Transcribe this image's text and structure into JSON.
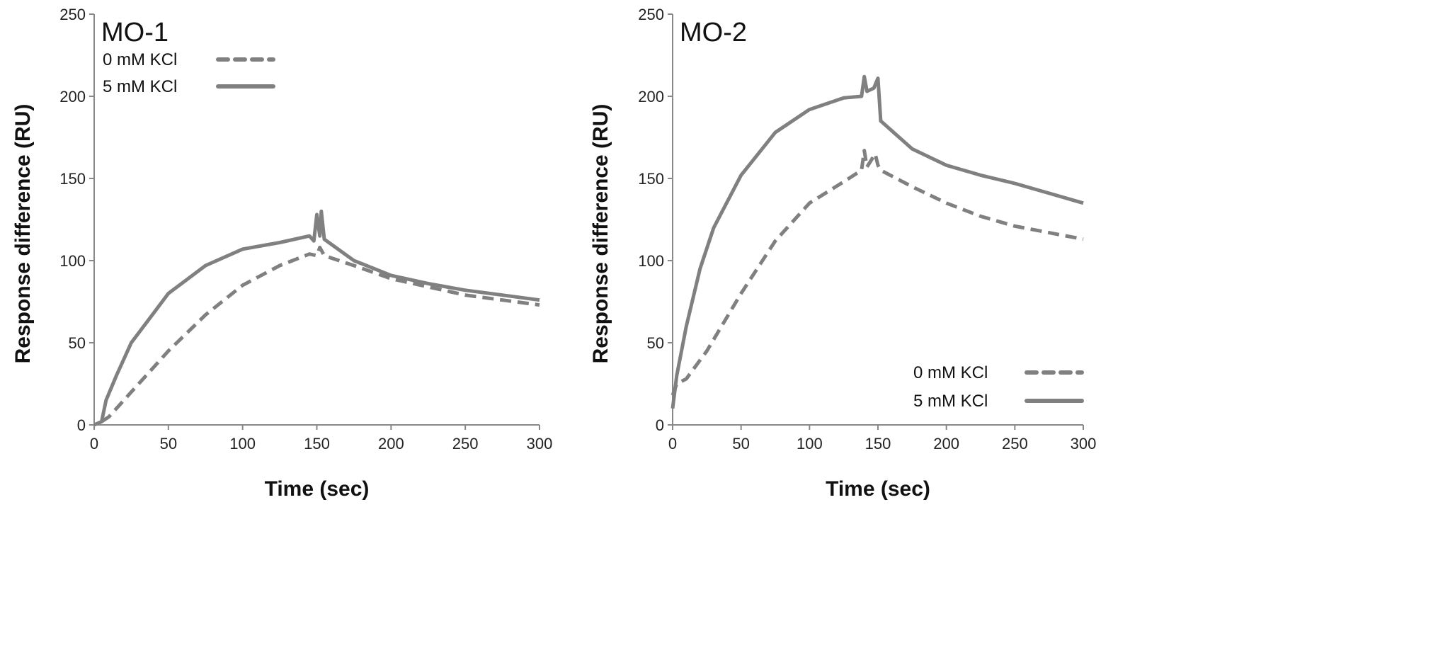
{
  "chart_data": [
    {
      "type": "line",
      "title": "MO-1",
      "xlabel": "Time (sec)",
      "ylabel": "Response difference  (RU)",
      "xlim": [
        0,
        300
      ],
      "ylim": [
        0,
        250
      ],
      "xticks": [
        0,
        50,
        100,
        150,
        200,
        250,
        300
      ],
      "yticks": [
        0,
        50,
        100,
        150,
        200,
        250
      ],
      "grid": false,
      "legend_position": "top-left",
      "series": [
        {
          "name": "0 mM KCl",
          "style": "dashed",
          "color": "#808080",
          "x": [
            5,
            10,
            25,
            50,
            75,
            100,
            125,
            145,
            150,
            152,
            155,
            175,
            200,
            225,
            250,
            275,
            300
          ],
          "y": [
            2,
            5,
            20,
            45,
            67,
            85,
            97,
            104,
            103,
            108,
            103,
            97,
            89,
            84,
            79,
            76,
            73
          ]
        },
        {
          "name": "5 mM KCl",
          "style": "solid",
          "color": "#808080",
          "x": [
            0,
            5,
            8,
            15,
            25,
            40,
            50,
            75,
            100,
            125,
            145,
            148,
            150,
            152,
            153,
            155,
            175,
            200,
            225,
            250,
            275,
            300
          ],
          "y": [
            0,
            2,
            15,
            30,
            50,
            68,
            80,
            97,
            107,
            111,
            115,
            112,
            128,
            115,
            130,
            113,
            100,
            91,
            86,
            82,
            79,
            76
          ]
        }
      ]
    },
    {
      "type": "line",
      "title": "MO-2",
      "xlabel": "Time (sec)",
      "ylabel": "Response difference  (RU)",
      "xlim": [
        0,
        300
      ],
      "ylim": [
        0,
        250
      ],
      "xticks": [
        0,
        50,
        100,
        150,
        200,
        250,
        300
      ],
      "yticks": [
        0,
        50,
        100,
        150,
        200,
        250
      ],
      "grid": false,
      "legend_position": "bottom-right",
      "series": [
        {
          "name": "0 mM KCl",
          "style": "dashed",
          "color": "#808080",
          "x": [
            0,
            3,
            10,
            25,
            50,
            75,
            100,
            125,
            138,
            140,
            142,
            148,
            150,
            152,
            175,
            200,
            225,
            250,
            275,
            300
          ],
          "y": [
            18,
            25,
            28,
            45,
            80,
            112,
            135,
            148,
            155,
            167,
            157,
            165,
            158,
            155,
            145,
            135,
            127,
            121,
            117,
            113
          ]
        },
        {
          "name": "5 mM KCl",
          "style": "solid",
          "color": "#808080",
          "x": [
            0,
            3,
            10,
            20,
            30,
            50,
            75,
            100,
            125,
            138,
            140,
            142,
            147,
            150,
            152,
            175,
            200,
            225,
            250,
            275,
            300
          ],
          "y": [
            10,
            30,
            60,
            95,
            120,
            152,
            178,
            192,
            199,
            200,
            212,
            203,
            205,
            211,
            185,
            168,
            158,
            152,
            147,
            141,
            135
          ]
        }
      ]
    }
  ]
}
